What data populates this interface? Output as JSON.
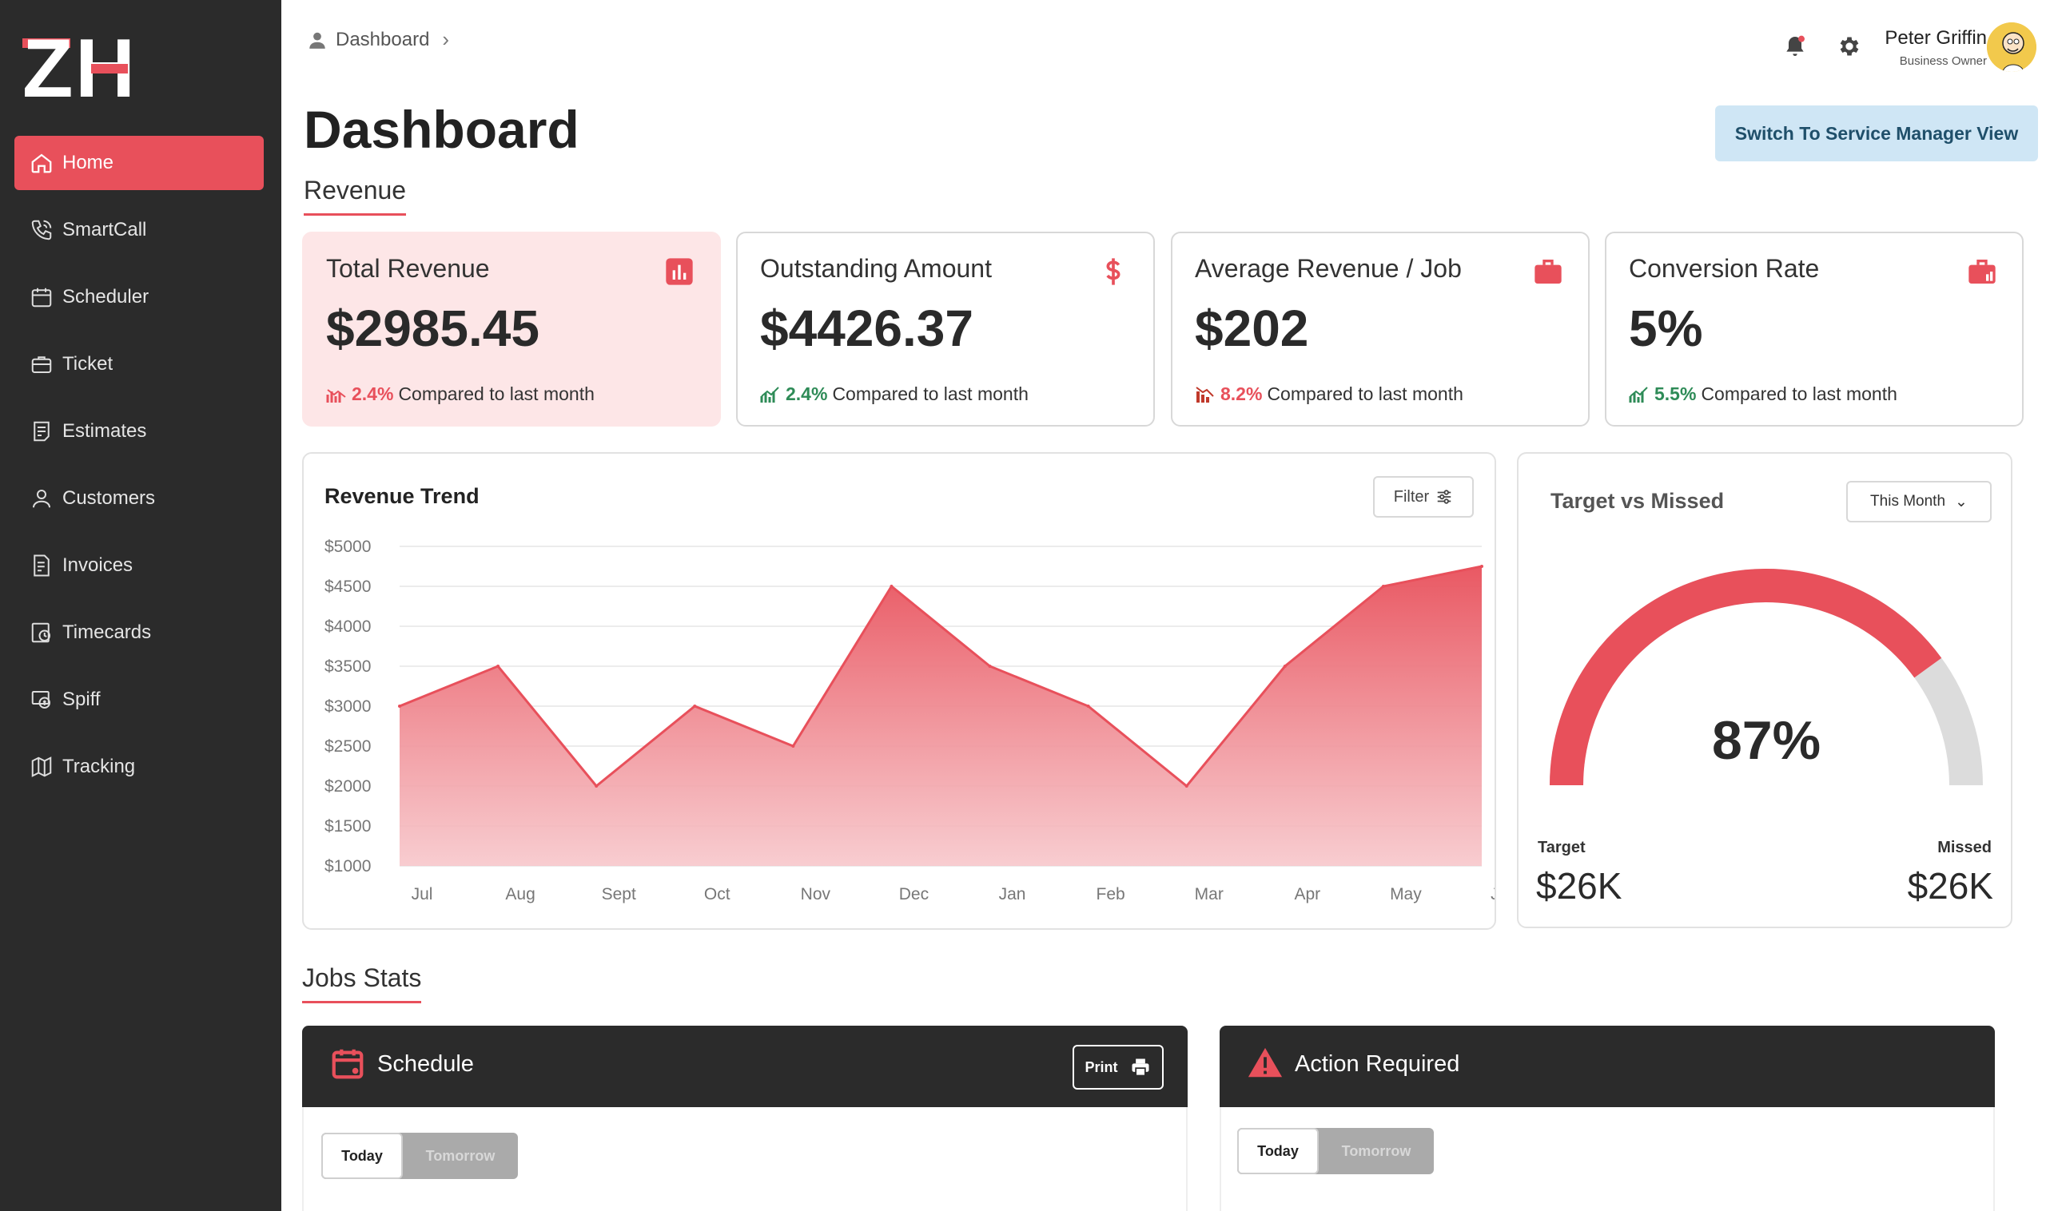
{
  "sidebar": {
    "logo": "ZH",
    "items": [
      {
        "label": "Home",
        "icon": "home-icon"
      },
      {
        "label": "SmartCall",
        "icon": "phone-icon"
      },
      {
        "label": "Scheduler",
        "icon": "calendar-icon"
      },
      {
        "label": "Ticket",
        "icon": "briefcase-icon"
      },
      {
        "label": "Estimates",
        "icon": "estimate-icon"
      },
      {
        "label": "Customers",
        "icon": "user-icon"
      },
      {
        "label": "Invoices",
        "icon": "invoice-icon"
      },
      {
        "label": "Timecards",
        "icon": "timecard-icon"
      },
      {
        "label": "Spiff",
        "icon": "spiff-icon"
      },
      {
        "label": "Tracking",
        "icon": "map-icon"
      }
    ],
    "active": "Home"
  },
  "header": {
    "breadcrumb": "Dashboard",
    "user_name": "Peter Griffin",
    "user_role": "Business Owner"
  },
  "page": {
    "title": "Dashboard",
    "switch_button": "Switch To Service Manager View",
    "revenue_section": "Revenue",
    "jobs_section": "Jobs Stats"
  },
  "kpis": [
    {
      "label": "Total Revenue",
      "value": "$2985.45",
      "change": "2.4%",
      "compare": "Compared to last month",
      "direction": "down",
      "icon": "bar-chart-icon"
    },
    {
      "label": "Outstanding Amount",
      "value": "$4426.37",
      "change": "2.4%",
      "compare": "Compared to last month",
      "direction": "up",
      "icon": "dollar-icon"
    },
    {
      "label": "Average Revenue / Job",
      "value": "$202",
      "change": "8.2%",
      "compare": "Compared to last month",
      "direction": "down",
      "icon": "briefcase-icon"
    },
    {
      "label": "Conversion Rate",
      "value": "5%",
      "change": "5.5%",
      "compare": "Compared to last month",
      "direction": "up",
      "icon": "briefcase-chart-icon"
    }
  ],
  "trend": {
    "title": "Revenue Trend",
    "filter_label": "Filter"
  },
  "chart_data": {
    "type": "area",
    "categories": [
      "Jul",
      "Aug",
      "Sept",
      "Oct",
      "Nov",
      "Dec",
      "Jan",
      "Feb",
      "Mar",
      "Apr",
      "May",
      "Jun"
    ],
    "values": [
      3000,
      3500,
      2000,
      3000,
      2500,
      4500,
      3500,
      3000,
      2000,
      3500,
      4500,
      4750
    ],
    "y_ticks": [
      "$5000",
      "$4500",
      "$4000",
      "$3500",
      "$3000",
      "$2500",
      "$2000",
      "$1500",
      "$1000"
    ],
    "ylim": [
      1000,
      5000
    ],
    "grid": true,
    "color": "#e8505b"
  },
  "target": {
    "title": "Target vs Missed",
    "period": "This Month",
    "percent": "87%",
    "fraction": 0.87,
    "target_label": "Target",
    "target_value": "$26K",
    "missed_label": "Missed",
    "missed_value": "$26K"
  },
  "jobs": {
    "schedule_title": "Schedule",
    "print_label": "Print",
    "action_title": "Action Required",
    "today": "Today",
    "tomorrow": "Tomorrow"
  },
  "colors": {
    "accent": "#e8505b",
    "sidebar": "#2b2b2b",
    "switch_button": "#cfe6f5",
    "up": "#2e8b57",
    "down": "#e8505b"
  }
}
